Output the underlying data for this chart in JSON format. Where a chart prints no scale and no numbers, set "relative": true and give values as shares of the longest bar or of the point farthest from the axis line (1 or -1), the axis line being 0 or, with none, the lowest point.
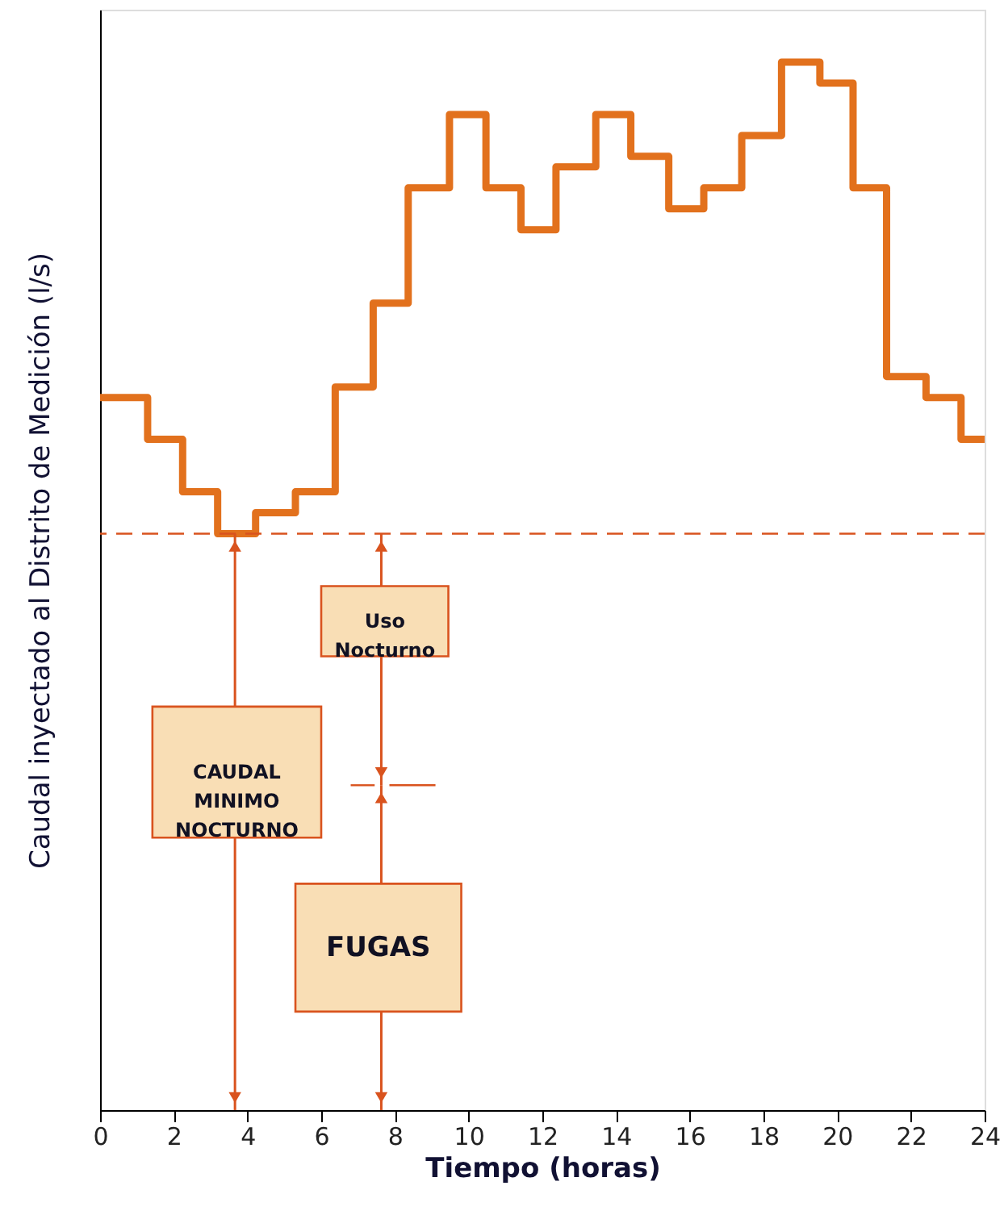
{
  "chart_data": {
    "type": "step",
    "relative": true,
    "tick_labels": "x",
    "xlabel": "Tiempo (horas)",
    "ylabel": "Caudal inyectado al Distrito de Medición (l/s)",
    "x": [
      0,
      1.29,
      2.24,
      3.19,
      4.22,
      5.3,
      6.38,
      7.41,
      8.36,
      9.48,
      10.47,
      11.42,
      12.37,
      13.45,
      14.4,
      15.43,
      16.38,
      17.41,
      18.49,
      19.53,
      20.43,
      21.34,
      22.41,
      23.36,
      24
    ],
    "series": [
      {
        "color": "#e2711d",
        "values": [
          0.68,
          0.64,
          0.59,
          0.55,
          0.57,
          0.59,
          0.69,
          0.77,
          0.88,
          0.95,
          0.88,
          0.84,
          0.9,
          0.95,
          0.91,
          0.86,
          0.88,
          0.93,
          1,
          0.98,
          0.88,
          0.7,
          0.68,
          0.64,
          0.64
        ]
      }
    ],
    "xlim": [
      0,
      24
    ],
    "xticks": [
      0,
      2,
      4,
      6,
      8,
      10,
      12,
      14,
      16,
      18,
      20,
      22,
      24
    ],
    "ref_lines": [
      {
        "axis": "y",
        "value": 0.55,
        "color": "#d9531e",
        "line_style": "dashed"
      }
    ],
    "annotations": [
      "CAUDAL MINIMO NOCTURNO",
      "Uso Nocturno",
      "FUGAS"
    ]
  }
}
